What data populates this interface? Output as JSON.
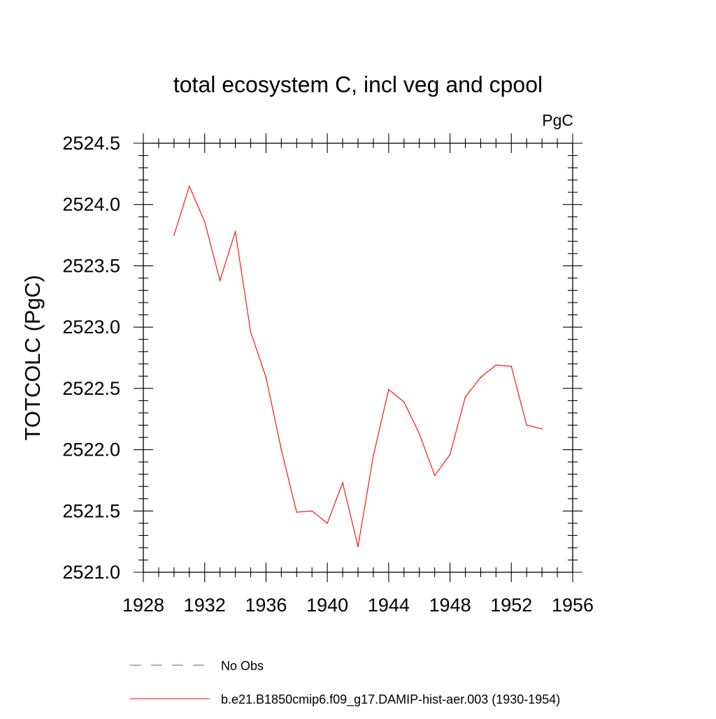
{
  "chart_data": {
    "type": "line",
    "title": "total ecosystem C, incl veg and cpool",
    "units_label": "PgC",
    "ylabel": "TOTCOLC  (PgC)",
    "xlabel": "",
    "xlim": [
      1928,
      1956
    ],
    "ylim": [
      2521.0,
      2524.5
    ],
    "x_ticks": [
      1928,
      1932,
      1936,
      1940,
      1944,
      1948,
      1952,
      1956
    ],
    "x_tick_labels": [
      "1928",
      "1932",
      "1936",
      "1940",
      "1944",
      "1948",
      "1952",
      "1956"
    ],
    "y_ticks": [
      2521.0,
      2521.5,
      2522.0,
      2522.5,
      2523.0,
      2523.5,
      2524.0,
      2524.5
    ],
    "y_tick_labels": [
      "2521.0",
      "2521.5",
      "2522.0",
      "2522.5",
      "2523.0",
      "2523.5",
      "2524.0",
      "2524.5"
    ],
    "grid": false,
    "legend_position": "bottom",
    "series": [
      {
        "name": "No Obs",
        "color": "#5b5bd6",
        "style": "dashed",
        "x": [],
        "y": []
      },
      {
        "name": "b.e21.B1850cmip6.f09_g17.DAMIP-hist-aer.003 (1930-1954)",
        "color": "#ff0000",
        "style": "solid",
        "x": [
          1930,
          1931,
          1932,
          1933,
          1934,
          1935,
          1936,
          1937,
          1938,
          1939,
          1940,
          1941,
          1942,
          1943,
          1944,
          1945,
          1946,
          1947,
          1948,
          1949,
          1950,
          1951,
          1952,
          1953,
          1954
        ],
        "y": [
          2523.75,
          2524.15,
          2523.86,
          2523.38,
          2523.78,
          2522.96,
          2522.59,
          2522.0,
          2521.49,
          2521.5,
          2521.4,
          2521.73,
          2521.21,
          2521.95,
          2522.49,
          2522.39,
          2522.13,
          2521.79,
          2521.96,
          2522.43,
          2522.59,
          2522.69,
          2522.68,
          2522.2,
          2522.17
        ]
      }
    ]
  }
}
